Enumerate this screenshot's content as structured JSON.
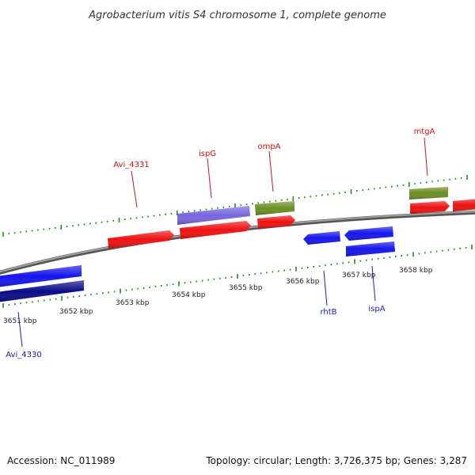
{
  "title": "Agrobacterium vitis S4 chromosome 1, complete genome",
  "footer": {
    "accession": "Accession: NC_011989",
    "summary": "Topology: circular; Length: 3,726,375 bp; Genes: 3,287"
  },
  "scale": {
    "tick_labels": [
      "3651 kbp",
      "3652 kbp",
      "3653 kbp",
      "3654 kbp",
      "3655 kbp",
      "3656 kbp",
      "3657 kbp",
      "3658 kbp"
    ]
  },
  "genes": [
    {
      "label": "Avi_4330",
      "strand": "reverse",
      "label_color": "#1a1aa8"
    },
    {
      "label": "Avi_4331",
      "strand": "forward",
      "label_color": "#cc1111"
    },
    {
      "label": "ispG",
      "strand": "forward",
      "label_color": "#cc1111"
    },
    {
      "label": "ompA",
      "strand": "forward",
      "label_color": "#cc1111"
    },
    {
      "label": "mtgA",
      "strand": "forward",
      "label_color": "#cc1111"
    },
    {
      "label": "rhtB",
      "strand": "reverse",
      "label_color": "#1a1aa8"
    },
    {
      "label": "ispA",
      "strand": "reverse",
      "label_color": "#1a1aa8"
    }
  ],
  "colors": {
    "cds_forward": "#ee1111",
    "cds_reverse": "#1515ee",
    "gene_forward": "#7766dd",
    "gene_reverse": "#0a0a88",
    "rna": "#6b8e23",
    "backbone": "#808080",
    "tick": "#228B22"
  }
}
